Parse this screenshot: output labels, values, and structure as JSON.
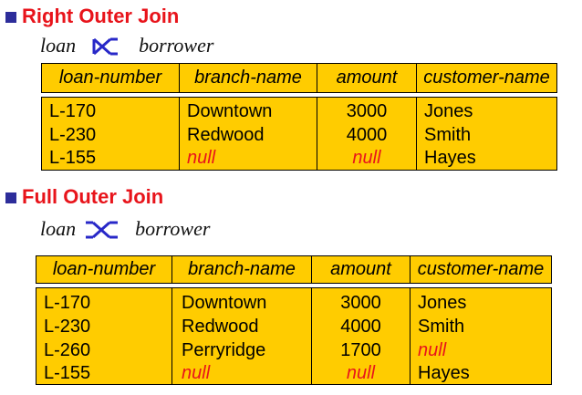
{
  "sections": [
    {
      "title": "Right Outer Join",
      "expr_left": "loan",
      "expr_right": "borrower",
      "join_type": "right-outer-join",
      "columns": [
        "loan-number",
        "branch-name",
        "amount",
        "customer-name"
      ],
      "rows": [
        [
          "L-170",
          "Downtown",
          "3000",
          "Jones"
        ],
        [
          "L-230",
          "Redwood",
          "4000",
          "Smith"
        ],
        [
          "L-155",
          "null",
          "null",
          "Hayes"
        ]
      ]
    },
    {
      "title": "Full Outer Join",
      "expr_left": "loan",
      "expr_right": "borrower",
      "join_type": "full-outer-join",
      "columns": [
        "loan-number",
        "branch-name",
        "amount",
        "customer-name"
      ],
      "rows": [
        [
          "L-170",
          "Downtown",
          "3000",
          "Jones"
        ],
        [
          "L-230",
          "Redwood",
          "4000",
          "Smith"
        ],
        [
          "L-260",
          "Perryridge",
          "1700",
          "null"
        ],
        [
          "L-155",
          "null",
          "null",
          "Hayes"
        ]
      ]
    }
  ],
  "colors": {
    "heading": "#e8141b",
    "table_fill": "#ffcc00",
    "bullet": "#2d2d9a",
    "join_symbol": "#2828c8"
  },
  "icons": [
    "square-bullet-icon",
    "right-outer-join-icon",
    "full-outer-join-icon"
  ]
}
